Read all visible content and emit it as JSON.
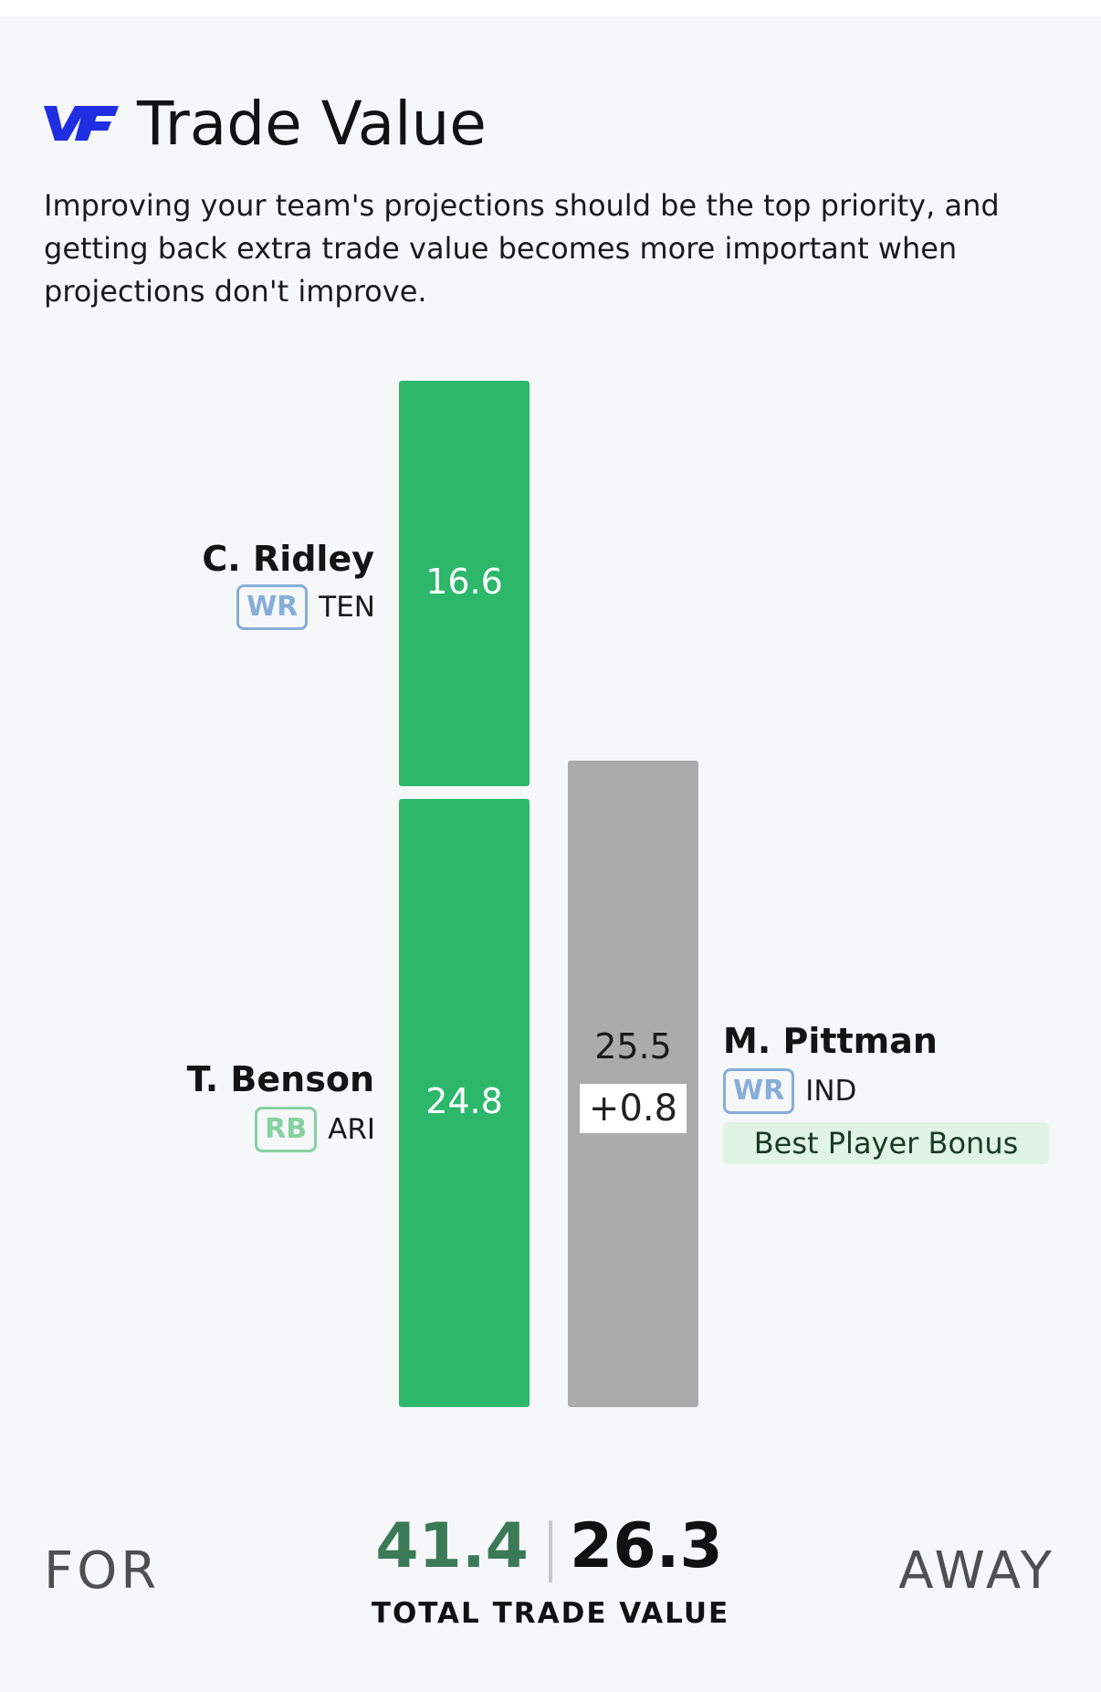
{
  "header": {
    "logo_text": "VF",
    "title": "Trade Value",
    "subtitle": "Improving your team's projections should be the top priority, and getting back extra trade value becomes more important when projections don't improve."
  },
  "colors": {
    "for_bar": "#2cb76b",
    "away_bar": "#ababab",
    "wr_badge": "#86aed8",
    "rb_badge": "#86d1a2",
    "brand": "#1f2ee0",
    "for_total": "#3b7a57"
  },
  "for_players": [
    {
      "name": "C. Ridley",
      "position": "WR",
      "team": "TEN",
      "value": "16.6"
    },
    {
      "name": "T. Benson",
      "position": "RB",
      "team": "ARI",
      "value": "24.8"
    }
  ],
  "away_players": [
    {
      "name": "M. Pittman",
      "position": "WR",
      "team": "IND",
      "value": "25.5",
      "bonus_value": "+0.8",
      "bonus_label": "Best Player Bonus"
    }
  ],
  "footer": {
    "for_label": "FOR",
    "away_label": "AWAY",
    "for_total": "41.4",
    "away_total": "26.3",
    "caption": "TOTAL TRADE VALUE"
  }
}
